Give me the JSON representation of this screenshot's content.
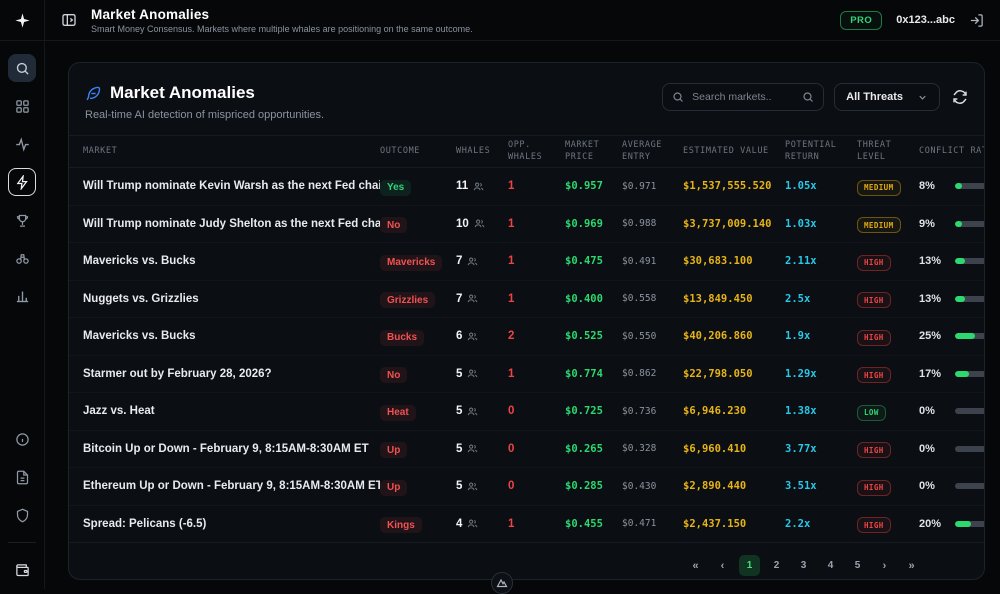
{
  "topbar": {
    "title": "Market Anomalies",
    "subtitle": "Smart Money Consensus. Markets where multiple whales are positioning on the same outcome.",
    "pro_badge": "PRO",
    "wallet": "0x123...abc"
  },
  "sidebar": {
    "top_icons": [
      "search-icon",
      "grid-icon",
      "activity-icon",
      "lightning-icon",
      "trophy-icon",
      "binoculars-icon",
      "bar-chart-icon"
    ],
    "active_icon": "lightning-icon",
    "bottom_icons": [
      "info-icon",
      "document-icon",
      "shield-icon",
      "wallet-icon"
    ]
  },
  "panel": {
    "title": "Market Anomalies",
    "subtitle": "Real-time AI detection of mispriced opportunities.",
    "search_placeholder": "Search markets..",
    "threat_filter_value": "All Threats"
  },
  "table": {
    "columns": [
      "MARKET",
      "OUTCOME",
      "WHALES",
      "OPP.\nWHALES",
      "MARKET\nPRICE",
      "AVERAGE\nENTRY",
      "ESTIMATED VALUE",
      "POTENTIAL\nRETURN",
      "THREAT\nLEVEL",
      "CONFLICT RATIO"
    ],
    "rows": [
      {
        "market": "Will Trump nominate Kevin Warsh as the next Fed chair?",
        "outcome": "Yes",
        "outcome_type": "yes",
        "whales": "11",
        "opp_whales": "1",
        "market_price": "$0.957",
        "avg_entry": "$0.971",
        "est_value": "$1,537,555.520",
        "pot_return": "1.05x",
        "threat": "MEDIUM",
        "conflict": "8%",
        "conflict_pct": 8
      },
      {
        "market": "Will Trump nominate Judy Shelton as the next Fed chair?",
        "outcome": "No",
        "outcome_type": "no",
        "whales": "10",
        "opp_whales": "1",
        "market_price": "$0.969",
        "avg_entry": "$0.988",
        "est_value": "$3,737,009.140",
        "pot_return": "1.03x",
        "threat": "MEDIUM",
        "conflict": "9%",
        "conflict_pct": 9
      },
      {
        "market": "Mavericks vs. Bucks",
        "outcome": "Mavericks",
        "outcome_type": "no",
        "whales": "7",
        "opp_whales": "1",
        "market_price": "$0.475",
        "avg_entry": "$0.491",
        "est_value": "$30,683.100",
        "pot_return": "2.11x",
        "threat": "HIGH",
        "conflict": "13%",
        "conflict_pct": 13
      },
      {
        "market": "Nuggets vs. Grizzlies",
        "outcome": "Grizzlies",
        "outcome_type": "no",
        "whales": "7",
        "opp_whales": "1",
        "market_price": "$0.400",
        "avg_entry": "$0.558",
        "est_value": "$13,849.450",
        "pot_return": "2.5x",
        "threat": "HIGH",
        "conflict": "13%",
        "conflict_pct": 13
      },
      {
        "market": "Mavericks vs. Bucks",
        "outcome": "Bucks",
        "outcome_type": "no",
        "whales": "6",
        "opp_whales": "2",
        "market_price": "$0.525",
        "avg_entry": "$0.550",
        "est_value": "$40,206.860",
        "pot_return": "1.9x",
        "threat": "HIGH",
        "conflict": "25%",
        "conflict_pct": 25
      },
      {
        "market": "Starmer out by February 28, 2026?",
        "outcome": "No",
        "outcome_type": "no",
        "whales": "5",
        "opp_whales": "1",
        "market_price": "$0.774",
        "avg_entry": "$0.862",
        "est_value": "$22,798.050",
        "pot_return": "1.29x",
        "threat": "HIGH",
        "conflict": "17%",
        "conflict_pct": 17
      },
      {
        "market": "Jazz vs. Heat",
        "outcome": "Heat",
        "outcome_type": "no",
        "whales": "5",
        "opp_whales": "0",
        "market_price": "$0.725",
        "avg_entry": "$0.736",
        "est_value": "$6,946.230",
        "pot_return": "1.38x",
        "threat": "LOW",
        "conflict": "0%",
        "conflict_pct": 0
      },
      {
        "market": "Bitcoin Up or Down - February 9, 8:15AM-8:30AM ET",
        "outcome": "Up",
        "outcome_type": "no",
        "whales": "5",
        "opp_whales": "0",
        "market_price": "$0.265",
        "avg_entry": "$0.328",
        "est_value": "$6,960.410",
        "pot_return": "3.77x",
        "threat": "HIGH",
        "conflict": "0%",
        "conflict_pct": 0
      },
      {
        "market": "Ethereum Up or Down - February 9, 8:15AM-8:30AM ET",
        "outcome": "Up",
        "outcome_type": "no",
        "whales": "5",
        "opp_whales": "0",
        "market_price": "$0.285",
        "avg_entry": "$0.430",
        "est_value": "$2,890.440",
        "pot_return": "3.51x",
        "threat": "HIGH",
        "conflict": "0%",
        "conflict_pct": 0
      },
      {
        "market": "Spread: Pelicans (-6.5)",
        "outcome": "Kings",
        "outcome_type": "no",
        "whales": "4",
        "opp_whales": "1",
        "market_price": "$0.455",
        "avg_entry": "$0.471",
        "est_value": "$2,437.150",
        "pot_return": "2.2x",
        "threat": "HIGH",
        "conflict": "20%",
        "conflict_pct": 20
      }
    ]
  },
  "pagination": {
    "first": "«",
    "prev": "‹",
    "pages": [
      "1",
      "2",
      "3",
      "4",
      "5"
    ],
    "active": "1",
    "next": "›",
    "last": "»"
  },
  "colors": {
    "accent_green": "#2bd96f",
    "accent_gold": "#e7b416",
    "accent_cyan": "#29c8e8",
    "accent_red": "#ef4444",
    "threat_medium": "#e0a815",
    "panel_bg": "#0b0e13",
    "page_bg": "#060709",
    "border": "#1d232c",
    "muted": "#8b949e",
    "brand_blue": "#3b82f6"
  }
}
